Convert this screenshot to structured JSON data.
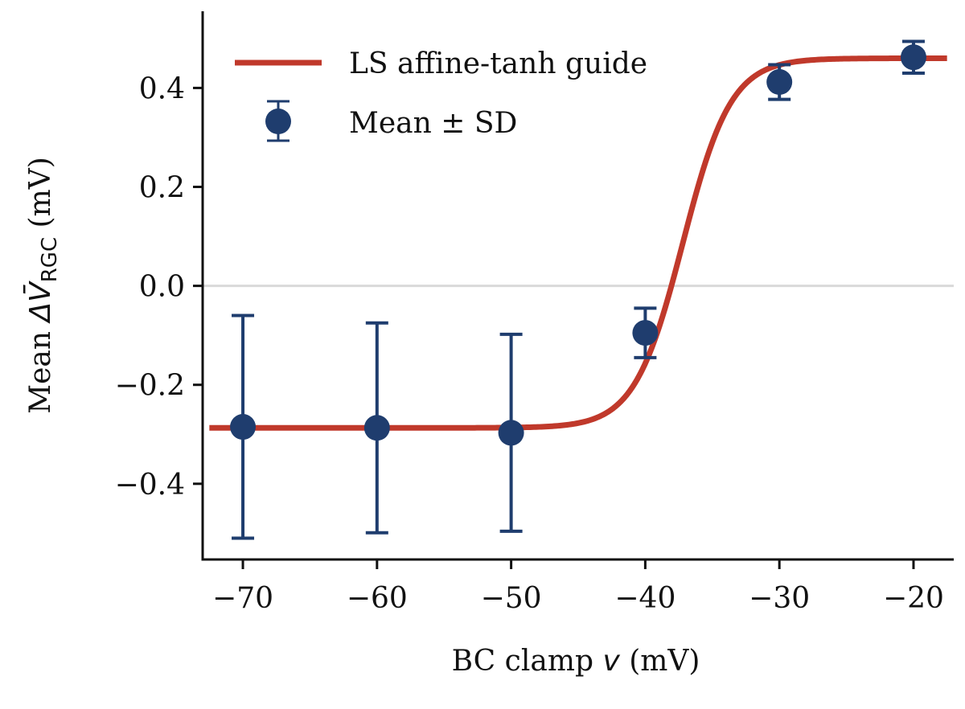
{
  "chart_data": {
    "type": "line",
    "title": "",
    "xlabel": "BC clamp v (mV)",
    "xlabel_parts": {
      "prefix": "BC clamp ",
      "italic_var": "v",
      "suffix": " (mV)"
    },
    "ylabel": "Mean ΔV̄RGC (mV)",
    "ylabel_parts": {
      "prefix": "Mean ",
      "symbol": "ΔV̄",
      "subscript": "RGC",
      "suffix": " (mV)"
    },
    "xlim": [
      -73,
      -17
    ],
    "ylim": [
      -0.553,
      0.555
    ],
    "xticks": [
      -70,
      -60,
      -50,
      -40,
      -30,
      -20
    ],
    "xtick_labels": [
      "−70",
      "−60",
      "−50",
      "−40",
      "−30",
      "−20"
    ],
    "yticks": [
      -0.4,
      -0.2,
      0.0,
      0.2,
      0.4
    ],
    "ytick_labels": [
      "−0.4",
      "−0.2",
      "0.0",
      "0.2",
      "0.4"
    ],
    "reference_line": {
      "y": 0.0,
      "color": "#d9d9d9"
    },
    "spines": "left-bottom",
    "grid": false,
    "legend_placement": "top-left",
    "series": [
      {
        "name": "LS affine-tanh guide",
        "kind": "curve",
        "color": "#c0392b",
        "model": {
          "form": "offset + amplitude * tanh((v - center) / width)",
          "offset": 0.0865,
          "amplitude": 0.3735,
          "center": -37.2,
          "width": 3.6
        },
        "x_range": [
          -72.5,
          -17.5
        ]
      },
      {
        "name": "Mean ± SD",
        "kind": "errorbar",
        "color": "#1f3d6e",
        "x": [
          -70,
          -60,
          -50,
          -40,
          -30,
          -20
        ],
        "y": [
          -0.285,
          -0.287,
          -0.297,
          -0.095,
          0.412,
          0.462
        ],
        "sd": [
          0.225,
          0.212,
          0.199,
          0.05,
          0.035,
          0.032
        ]
      }
    ]
  }
}
